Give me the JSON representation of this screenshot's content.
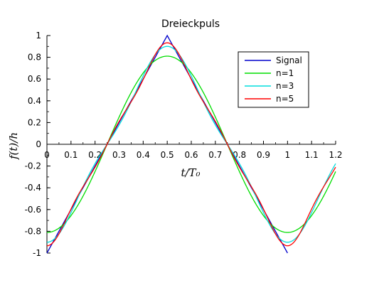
{
  "chart_data": {
    "type": "line",
    "title": "Dreieckpuls",
    "xlabel": "t/T₀",
    "ylabel": "f(t)/h",
    "xlim": [
      0,
      1.2
    ],
    "ylim": [
      -1,
      1
    ],
    "x_ticks": [
      "0",
      "0.1",
      "0.2",
      "0.3",
      "0.4",
      "0.5",
      "0.6",
      "0.7",
      "0.8",
      "0.9",
      "1",
      "1.1",
      "1.2"
    ],
    "y_ticks": [
      "1",
      "0.8",
      "0.6",
      "0.4",
      "0.2",
      "0",
      "-0.2",
      "-0.4",
      "-0.6",
      "-0.8",
      "-1"
    ],
    "legend_position": "top-right",
    "series": [
      {
        "name": "Signal",
        "color": "#0000cc",
        "kind": "triangle"
      },
      {
        "name": "n=1",
        "color": "#00dd00",
        "kind": "fourier",
        "harmonics": 1
      },
      {
        "name": "n=3",
        "color": "#00dddd",
        "kind": "fourier",
        "harmonics": 3
      },
      {
        "name": "n=5",
        "color": "#ff0000",
        "kind": "fourier",
        "harmonics": 5
      }
    ]
  }
}
